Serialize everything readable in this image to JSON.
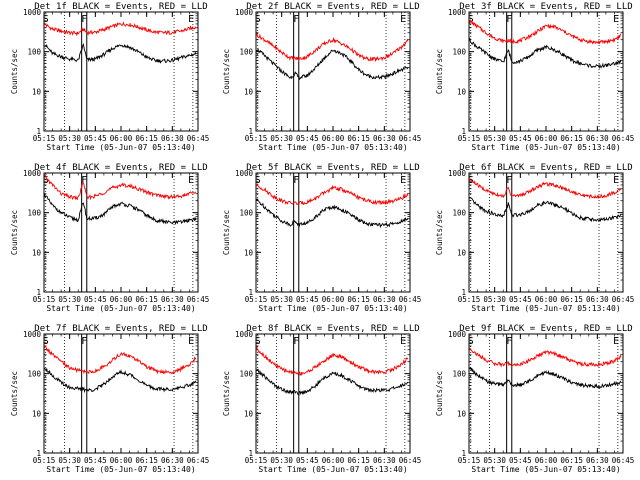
{
  "chart_data": {
    "type": "line",
    "layout_grid": "3x3",
    "yscale": "log",
    "ylim": [
      1,
      1000
    ],
    "yticks": [
      "1",
      "10",
      "100",
      "1000"
    ],
    "ylabel": "Counts/sec",
    "xlabel": "Start Time (05-Jun-07 05:13:40)",
    "xticks": [
      "05:15",
      "05:30",
      "05:45",
      "06:00",
      "06:15",
      "06:30",
      "06:45"
    ],
    "xlim_minutes_after_05_00": [
      15,
      105
    ],
    "series_colors": {
      "events": "#000000",
      "lld": "#ff0000"
    },
    "dotted_vlines_minutes_after_05_00": [
      16,
      27,
      91,
      102
    ],
    "box_interval_minutes_after_05_00": [
      37,
      40
    ],
    "markers": [
      {
        "label": "S",
        "x": 16
      },
      {
        "label": "F",
        "x": 38.5
      },
      {
        "label": "E",
        "x": 101
      }
    ],
    "panels": [
      {
        "title": "Det 1f BLACK = Events, RED = LLD",
        "x": [
          15,
          20,
          25,
          30,
          35,
          38,
          40,
          45,
          50,
          55,
          60,
          65,
          70,
          75,
          80,
          85,
          90,
          95,
          100,
          104
        ],
        "series": [
          {
            "values": [
              500,
              370,
              330,
              300,
              290,
              370,
              300,
              310,
              360,
              430,
              500,
              480,
              420,
              350,
              310,
              300,
              305,
              330,
              380,
              420
            ]
          },
          {
            "values": [
              160,
              90,
              75,
              65,
              60,
              150,
              62,
              65,
              85,
              120,
              150,
              130,
              100,
              72,
              60,
              58,
              60,
              70,
              80,
              90
            ]
          }
        ]
      },
      {
        "title": "Det 2f BLACK = Events, RED = LLD",
        "x": [
          15,
          20,
          25,
          30,
          35,
          38,
          40,
          45,
          50,
          55,
          60,
          65,
          70,
          75,
          80,
          85,
          90,
          95,
          100,
          104
        ],
        "series": [
          {
            "values": [
              270,
              200,
              140,
              95,
              70,
              68,
              65,
              75,
              110,
              160,
              200,
              160,
              120,
              80,
              65,
              65,
              70,
              90,
              130,
              200
            ]
          },
          {
            "values": [
              120,
              80,
              50,
              32,
              22,
              28,
              22,
              25,
              40,
              70,
              110,
              90,
              60,
              35,
              25,
              22,
              23,
              28,
              35,
              40
            ]
          }
        ]
      },
      {
        "title": "Det 3f BLACK = Events, RED = LLD",
        "x": [
          15,
          20,
          25,
          30,
          35,
          38,
          40,
          45,
          50,
          55,
          60,
          65,
          70,
          75,
          80,
          85,
          90,
          95,
          100,
          104
        ],
        "series": [
          {
            "values": [
              600,
              430,
              300,
              220,
              185,
              190,
              180,
              190,
              240,
              320,
              450,
              420,
              330,
              250,
              200,
              180,
              170,
              180,
              200,
              260
            ]
          },
          {
            "values": [
              200,
              130,
              90,
              65,
              55,
              110,
              55,
              58,
              75,
              110,
              130,
              110,
              85,
              60,
              50,
              45,
              42,
              45,
              50,
              55
            ]
          }
        ]
      },
      {
        "title": "Det 4f BLACK = Events, RED = LLD",
        "x": [
          15,
          20,
          25,
          30,
          35,
          38,
          40,
          45,
          50,
          55,
          60,
          65,
          70,
          75,
          80,
          85,
          90,
          95,
          100,
          104
        ],
        "series": [
          {
            "values": [
              850,
              500,
              300,
              250,
              230,
              600,
              240,
              260,
              320,
              420,
              500,
              470,
              400,
              330,
              280,
              260,
              250,
              260,
              300,
              330
            ]
          },
          {
            "values": [
              300,
              150,
              100,
              75,
              65,
              190,
              70,
              72,
              90,
              140,
              170,
              150,
              120,
              85,
              65,
              60,
              55,
              58,
              65,
              70
            ]
          }
        ]
      },
      {
        "title": "Det 5f BLACK = Events, RED = LLD",
        "x": [
          15,
          20,
          25,
          30,
          35,
          38,
          40,
          45,
          50,
          55,
          60,
          65,
          70,
          75,
          80,
          85,
          90,
          95,
          100,
          104
        ],
        "series": [
          {
            "values": [
              500,
              380,
              260,
              200,
              175,
              175,
              170,
              185,
              230,
              320,
              420,
              390,
              310,
              240,
              200,
              180,
              180,
              190,
              230,
              290
            ]
          },
          {
            "values": [
              220,
              140,
              90,
              62,
              50,
              60,
              50,
              55,
              80,
              120,
              140,
              120,
              90,
              65,
              52,
              50,
              48,
              52,
              60,
              70
            ]
          }
        ]
      },
      {
        "title": "Det 6f BLACK = Events, RED = LLD",
        "x": [
          15,
          20,
          25,
          30,
          35,
          38,
          40,
          45,
          50,
          55,
          60,
          65,
          70,
          75,
          80,
          85,
          90,
          95,
          100,
          104
        ],
        "series": [
          {
            "values": [
              700,
              500,
              360,
              300,
              260,
              420,
              260,
              270,
              340,
              450,
              540,
              500,
              420,
              340,
              280,
              260,
              250,
              270,
              320,
              400
            ]
          },
          {
            "values": [
              240,
              150,
              110,
              90,
              80,
              170,
              85,
              90,
              110,
              150,
              180,
              160,
              130,
              95,
              75,
              70,
              65,
              68,
              75,
              85
            ]
          }
        ]
      },
      {
        "title": "Det 7f BLACK = Events, RED = LLD",
        "x": [
          15,
          20,
          25,
          30,
          35,
          38,
          40,
          45,
          50,
          55,
          60,
          65,
          70,
          75,
          80,
          85,
          90,
          95,
          100,
          104
        ],
        "series": [
          {
            "values": [
              500,
              300,
              200,
              140,
              120,
              115,
              110,
              115,
              150,
              220,
              320,
              280,
              210,
              150,
              120,
              110,
              110,
              130,
              170,
              260
            ]
          },
          {
            "values": [
              150,
              90,
              60,
              45,
              42,
              40,
              38,
              40,
              55,
              85,
              110,
              95,
              70,
              50,
              42,
              40,
              40,
              45,
              52,
              60
            ]
          }
        ]
      },
      {
        "title": "Det 8f BLACK = Events, RED = LLD",
        "x": [
          15,
          20,
          25,
          30,
          35,
          38,
          40,
          45,
          50,
          55,
          60,
          65,
          70,
          75,
          80,
          85,
          90,
          95,
          100,
          104
        ],
        "series": [
          {
            "values": [
              450,
              280,
              180,
              130,
              110,
              105,
              100,
              110,
              150,
              210,
              300,
              260,
              200,
              150,
              120,
              110,
              110,
              130,
              170,
              250
            ]
          },
          {
            "values": [
              130,
              85,
              55,
              40,
              35,
              34,
              32,
              36,
              50,
              80,
              100,
              90,
              68,
              48,
              40,
              38,
              38,
              42,
              50,
              58
            ]
          }
        ]
      },
      {
        "title": "Det 9f BLACK = Events, RED = LLD",
        "x": [
          15,
          20,
          25,
          30,
          35,
          38,
          40,
          45,
          50,
          55,
          60,
          65,
          70,
          75,
          80,
          85,
          90,
          95,
          100,
          104
        ],
        "series": [
          {
            "values": [
              450,
              300,
              220,
              180,
              170,
              180,
              165,
              170,
              210,
              280,
              350,
              320,
              260,
              210,
              180,
              170,
              170,
              180,
              210,
              270
            ]
          },
          {
            "values": [
              150,
              90,
              65,
              55,
              52,
              70,
              50,
              52,
              65,
              90,
              110,
              95,
              75,
              60,
              52,
              50,
              48,
              50,
              55,
              60
            ]
          }
        ]
      }
    ]
  }
}
